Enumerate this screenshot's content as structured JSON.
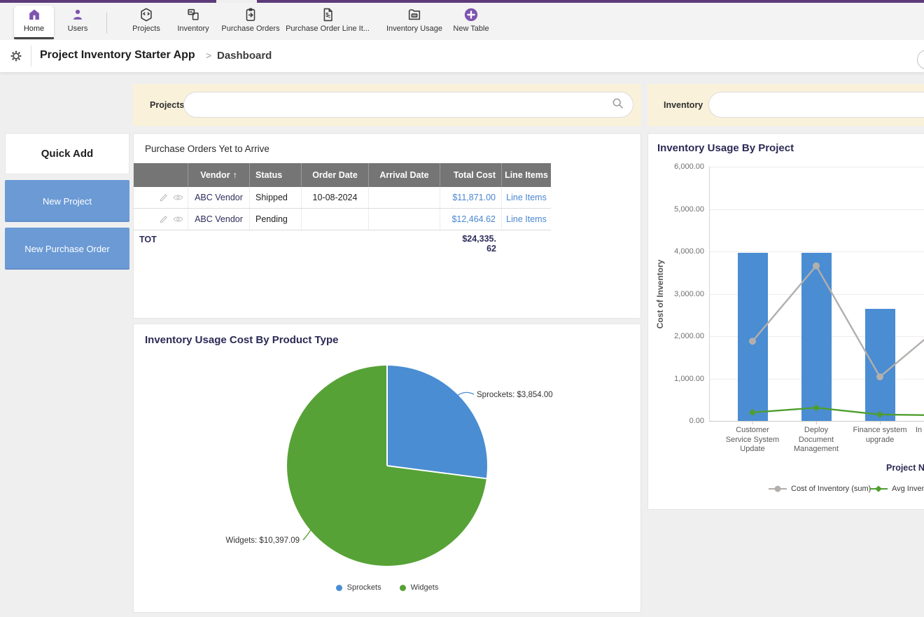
{
  "nav": {
    "tabs": [
      {
        "label": "Home",
        "active": true
      },
      {
        "label": "Users",
        "active": false
      },
      {
        "label": "Projects",
        "active": false
      },
      {
        "label": "Inventory",
        "active": false
      },
      {
        "label": "Purchase Orders",
        "active": false
      },
      {
        "label": "Purchase Order Line It...",
        "active": false
      },
      {
        "label": "Inventory Usage",
        "active": false
      },
      {
        "label": "New Table",
        "active": false
      }
    ]
  },
  "breadcrumb": {
    "app": "Project Inventory Starter App",
    "separator": ">",
    "page": "Dashboard"
  },
  "search": {
    "projects_label": "Projects",
    "projects_value": "",
    "inventory_label": "Inventory",
    "inventory_value": ""
  },
  "sidebar": {
    "title": "Quick Add",
    "new_project_label": "New Project",
    "new_purchase_order_label": "New Purchase Order"
  },
  "po_table": {
    "title": "Purchase Orders Yet to Arrive",
    "headers": {
      "vendor": "Vendor",
      "sort_indicator": "↑",
      "status": "Status",
      "order_date": "Order Date",
      "arrival_date": "Arrival Date",
      "total_cost": "Total Cost",
      "line_items": "Line Items"
    },
    "rows": [
      {
        "vendor": "ABC Vendor",
        "status": "Shipped",
        "order_date": "10-08-2024",
        "arrival_date": "",
        "total_cost": "$11,871.00",
        "line_items": "Line Items"
      },
      {
        "vendor": "ABC Vendor",
        "status": "Pending",
        "order_date": "",
        "arrival_date": "",
        "total_cost": "$12,464.62",
        "line_items": "Line Items"
      }
    ],
    "total": {
      "label": "TOT",
      "value": "$24,335.62",
      "line1": "$24,335.",
      "line2": "62"
    }
  },
  "chart_data": [
    {
      "id": "inventory-usage-by-project",
      "type": "bar",
      "title": "Inventory Usage By Project",
      "ylabel": "Cost of Inventory",
      "xlabel": "Project Na",
      "ylim": [
        0,
        6000
      ],
      "grid": true,
      "legend_position": "bottom",
      "y_ticks": [
        "6,000.00",
        "5,000.00",
        "4,000.00",
        "3,000.00",
        "2,000.00",
        "1,000.00",
        "0.00"
      ],
      "categories": [
        "Customer\nService System\nUpdate",
        "Deploy\nDocument\nManagement",
        "Finance system\nupgrade",
        "In"
      ],
      "series": [
        {
          "name": "Cost of Inventory",
          "type": "bar",
          "color": "#4a8dd2",
          "values": [
            3975,
            3975,
            2650,
            null
          ]
        },
        {
          "name": "Cost of Inventory (sum)",
          "type": "line",
          "marker": "circle",
          "color": "#b3afac",
          "values": [
            1880,
            3660,
            1040,
            2300
          ]
        },
        {
          "name": "Avg Inventory",
          "type": "line",
          "marker": "diamond",
          "color": "#4f9e2e",
          "values": [
            200,
            310,
            150,
            130
          ]
        }
      ],
      "legend": [
        "Cost of Inventory (sum)",
        "Avg Inventory"
      ]
    },
    {
      "id": "inventory-usage-cost-by-product-type",
      "type": "pie",
      "title": "Inventory Usage Cost By Product Type",
      "slices": [
        {
          "label": "Sprockets",
          "value": 3854.0,
          "display": "Sprockets: $3,854.00",
          "color": "#4a8dd2"
        },
        {
          "label": "Widgets",
          "value": 10397.09,
          "display": "Widgets: $10,397.09",
          "color": "#57a237"
        }
      ],
      "legend": [
        "Sprockets",
        "Widgets"
      ]
    }
  ],
  "icons": {
    "gear": "gear",
    "search": "magnifier",
    "edit": "pencil",
    "view": "eye",
    "home": "house",
    "users": "person",
    "projects": "hex-box",
    "inventory": "stacked-boxes",
    "purchase_orders": "clipboard-arrow",
    "po_line_items": "document-dollar",
    "inventory_usage": "folder",
    "new_table": "plus-circle",
    "help": "circle"
  },
  "colors": {
    "brand_purple": "#5d3b7a",
    "icon_purple": "#7d55af",
    "accent_blue": "#4a8dd2",
    "pie_green": "#57a237",
    "line_gray": "#b3afac",
    "line_green": "#4f9e2e",
    "link_blue": "#4a86d0",
    "cream": "#faf1da",
    "table_header_gray": "#757575",
    "navy_text": "#2e2d5c",
    "button_blue": "#6b9ad5"
  }
}
